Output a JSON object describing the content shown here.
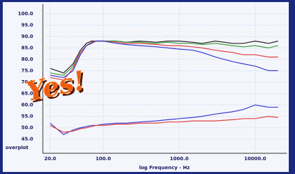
{
  "chart_data": {
    "type": "line",
    "x_label": "log Frequency - Hz",
    "corner_label": "overplot",
    "annotation": "Yes!",
    "log_x": true,
    "grid": true,
    "xlim": [
      16,
      26000
    ],
    "ylim": [
      40,
      103
    ],
    "xticks": [
      {
        "value": 20,
        "label": "20.0"
      },
      {
        "value": 100,
        "label": "100.0"
      },
      {
        "value": 1000,
        "label": "1000.0"
      },
      {
        "value": 10000,
        "label": "10000.0"
      }
    ],
    "yticks": [
      {
        "value": 45,
        "label": "45.0"
      },
      {
        "value": 50,
        "label": "50.0"
      },
      {
        "value": 55,
        "label": "55.0"
      },
      {
        "value": 60,
        "label": "60.0"
      },
      {
        "value": 65,
        "label": "65.0"
      },
      {
        "value": 70,
        "label": "70.0"
      },
      {
        "value": 75,
        "label": "75.0"
      },
      {
        "value": 80,
        "label": "80.0"
      },
      {
        "value": 85,
        "label": "85.0"
      },
      {
        "value": 90,
        "label": "90.0"
      },
      {
        "value": 95,
        "label": "95.0"
      },
      {
        "value": 100,
        "label": "100.0"
      }
    ],
    "x": [
      20,
      30,
      40,
      50,
      60,
      70,
      80,
      100,
      150,
      200,
      300,
      500,
      700,
      1000,
      1500,
      2000,
      3000,
      5000,
      7000,
      10000,
      15000,
      20000
    ],
    "series": [
      {
        "color": "#222222",
        "values": [
          76,
          74,
          78,
          84,
          87,
          88,
          88,
          88,
          88,
          87.5,
          88,
          87.5,
          88,
          88,
          87.5,
          87,
          88,
          87,
          87,
          88,
          87,
          88
        ]
      },
      {
        "color": "#3a9a3a",
        "values": [
          74,
          73,
          77,
          83,
          86,
          87.5,
          88,
          88,
          88,
          87.5,
          87.5,
          87,
          87.5,
          87,
          87,
          86.5,
          87,
          86,
          85.5,
          86,
          85,
          86
        ]
      },
      {
        "color": "#e04040",
        "values": [
          72,
          71,
          76,
          83,
          86,
          87.5,
          88,
          88,
          87.5,
          87,
          87,
          86.5,
          86,
          86,
          85.5,
          85,
          84,
          83,
          82,
          82,
          81,
          81
        ]
      },
      {
        "color": "#3a3ad0",
        "values": [
          73,
          72,
          75,
          82,
          86,
          87,
          88,
          88,
          87,
          86.5,
          86,
          85.5,
          85,
          84.5,
          84,
          83,
          81,
          79,
          78,
          77,
          75,
          75
        ]
      },
      {
        "color": "#3a3ad0",
        "values": [
          52,
          47,
          49,
          50,
          50.5,
          51,
          51,
          51.5,
          52,
          52,
          52.5,
          53,
          53.5,
          54,
          54.5,
          55,
          56,
          57,
          58,
          60,
          59,
          59
        ]
      },
      {
        "color": "#e04040",
        "values": [
          51,
          48,
          48.5,
          49.5,
          50,
          50.5,
          51,
          51,
          51.5,
          51.5,
          52,
          52,
          52.5,
          52.5,
          53,
          53,
          53,
          53.5,
          54,
          54,
          55,
          54.5
        ]
      }
    ]
  }
}
